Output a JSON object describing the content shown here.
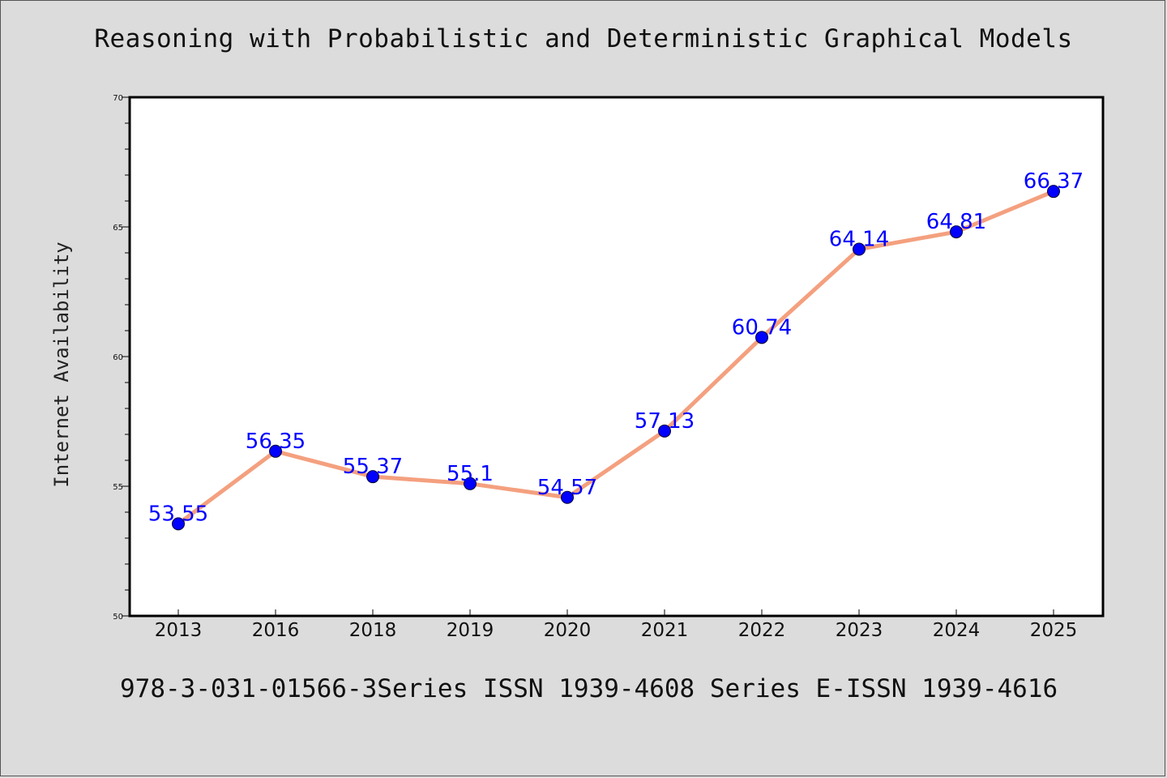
{
  "footer_text": "978-3-031-01566-3Series ISSN 1939-4608 Series E-ISSN 1939-4616",
  "colors": {
    "background": "#dcdcdc",
    "plot_background": "#ffffff",
    "line": "#f4a07f",
    "marker": "#0000ff",
    "data_label": "#0000ff"
  },
  "chart_data": {
    "type": "line",
    "title": "Reasoning with Probabilistic and Deterministic Graphical Models",
    "xlabel": "",
    "ylabel": "Internet Availability",
    "categories": [
      "2013",
      "2016",
      "2018",
      "2019",
      "2020",
      "2021",
      "2022",
      "2023",
      "2024",
      "2025"
    ],
    "values": [
      53.55,
      56.35,
      55.37,
      55.1,
      54.57,
      57.13,
      60.74,
      64.14,
      64.81,
      66.37
    ],
    "data_labels": [
      "53.55",
      "56.35",
      "55.37",
      "55.1",
      "54.57",
      "57.13",
      "60.74",
      "64.14",
      "64.81",
      "66.37"
    ],
    "ylim": [
      50,
      70
    ],
    "yticks": [
      50,
      55,
      60,
      65,
      70
    ],
    "grid": false,
    "legend": "none"
  }
}
